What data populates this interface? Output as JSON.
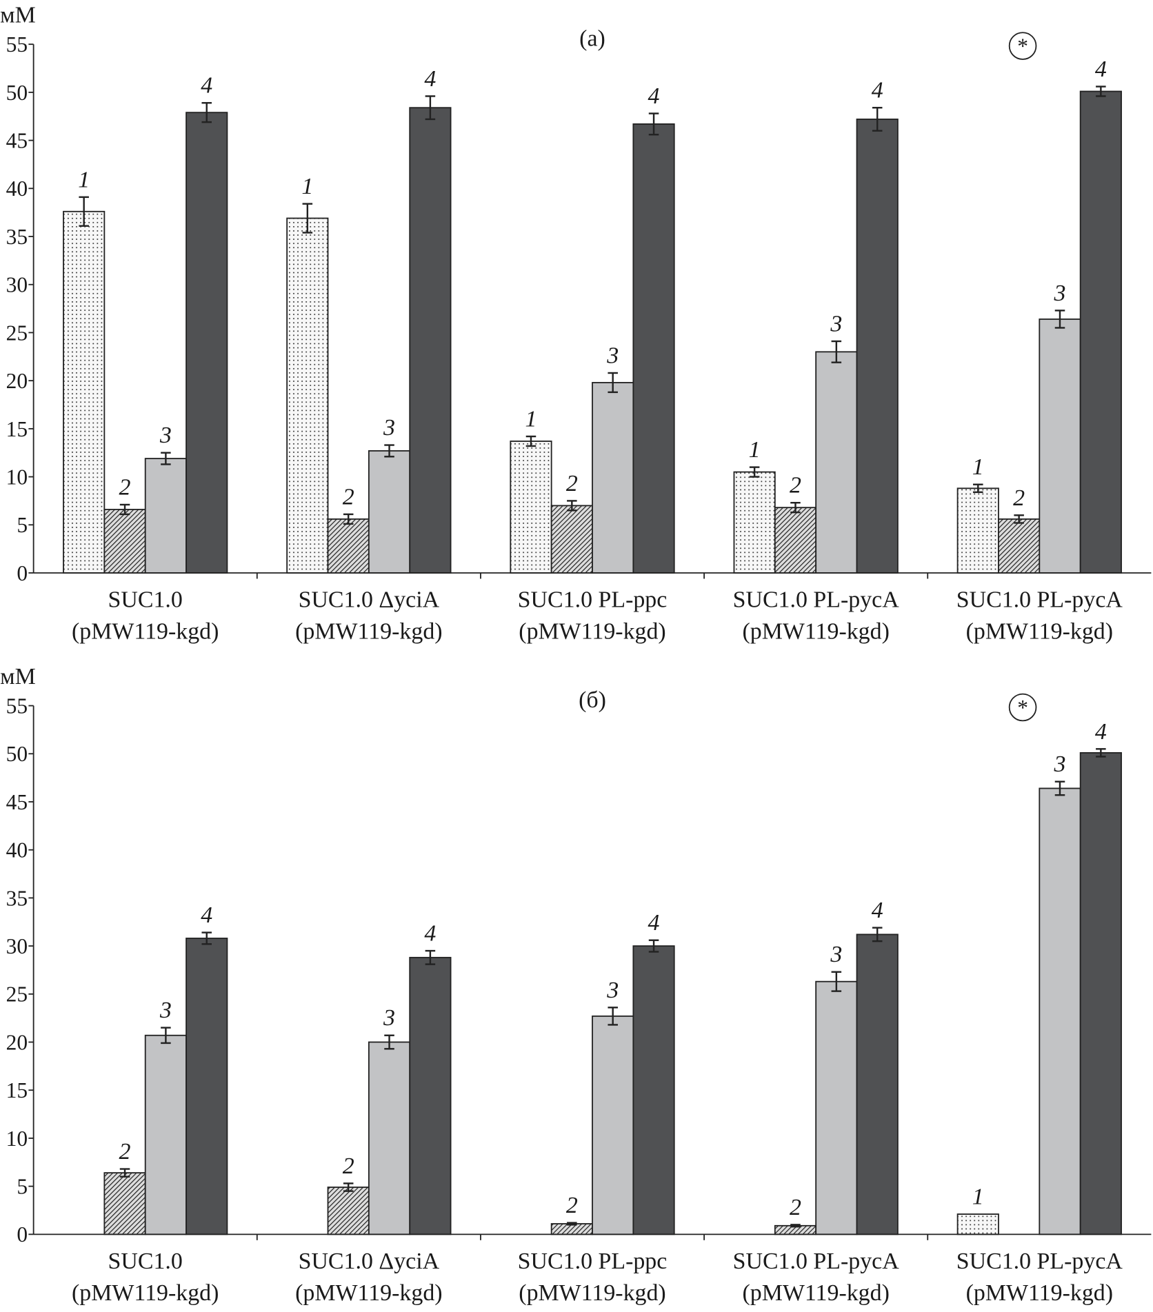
{
  "chart_data": [
    {
      "type": "bar",
      "title": "(а)",
      "y_label": "мМ",
      "annotation": "*",
      "categories": [
        [
          "SUC1.0",
          "(pMW119-kgd)"
        ],
        [
          "SUC1.0 ΔyciA",
          "(pMW119-kgd)"
        ],
        [
          "SUC1.0 PL-ppc",
          "(pMW119-kgd)"
        ],
        [
          "SUC1.0 PL-pycA",
          "(pMW119-kgd)"
        ],
        [
          "SUC1.0 PL-pycA",
          "(pMW119-kgd)"
        ]
      ],
      "series": [
        {
          "name": "1",
          "color": "#f7f7f7",
          "pattern": "dots",
          "values": [
            37.6,
            36.9,
            13.7,
            10.5,
            8.8
          ],
          "errors": [
            1.5,
            1.5,
            0.5,
            0.5,
            0.4
          ]
        },
        {
          "name": "2",
          "color": "#888888",
          "pattern": "hatch",
          "values": [
            6.6,
            5.6,
            7.0,
            6.8,
            5.6
          ],
          "errors": [
            0.5,
            0.5,
            0.5,
            0.5,
            0.4
          ]
        },
        {
          "name": "3",
          "color": "#c2c3c5",
          "values": [
            11.9,
            12.7,
            19.8,
            23.0,
            26.4
          ],
          "errors": [
            0.6,
            0.6,
            1.0,
            1.1,
            0.9
          ]
        },
        {
          "name": "4",
          "color": "#505153",
          "values": [
            47.9,
            48.4,
            46.7,
            47.2,
            50.1
          ],
          "errors": [
            1.0,
            1.2,
            1.1,
            1.2,
            0.5
          ]
        }
      ],
      "ylim": [
        0,
        55
      ],
      "yticks": [
        0,
        5,
        10,
        15,
        20,
        25,
        30,
        35,
        40,
        45,
        50,
        55
      ]
    },
    {
      "type": "bar",
      "title": "(б)",
      "y_label": "мМ",
      "annotation": "*",
      "categories": [
        [
          "SUC1.0",
          "(pMW119-kgd)"
        ],
        [
          "SUC1.0 ΔyciA",
          "(pMW119-kgd)"
        ],
        [
          "SUC1.0 PL-ppc",
          "(pMW119-kgd)"
        ],
        [
          "SUC1.0 PL-pycA",
          "(pMW119-kgd)"
        ],
        [
          "SUC1.0 PL-pycA",
          "(pMW119-kgd)"
        ]
      ],
      "series": [
        {
          "name": "1",
          "color": "#f7f7f7",
          "pattern": "dots",
          "values": [
            null,
            null,
            null,
            null,
            2.1
          ],
          "errors": [
            null,
            null,
            null,
            null,
            null
          ]
        },
        {
          "name": "2",
          "color": "#888888",
          "pattern": "hatch",
          "values": [
            6.4,
            4.9,
            1.1,
            0.9,
            null
          ],
          "errors": [
            0.4,
            0.4,
            0.1,
            0.1,
            null
          ]
        },
        {
          "name": "3",
          "color": "#c2c3c5",
          "values": [
            20.7,
            20.0,
            22.7,
            26.3,
            46.4
          ],
          "errors": [
            0.8,
            0.7,
            0.9,
            1.0,
            0.7
          ]
        },
        {
          "name": "4",
          "color": "#505153",
          "values": [
            30.8,
            28.8,
            30.0,
            31.2,
            50.1
          ],
          "errors": [
            0.6,
            0.7,
            0.6,
            0.7,
            0.4
          ]
        }
      ],
      "ylim": [
        0,
        55
      ],
      "yticks": [
        0,
        5,
        10,
        15,
        20,
        25,
        30,
        35,
        40,
        45,
        50,
        55
      ]
    }
  ]
}
